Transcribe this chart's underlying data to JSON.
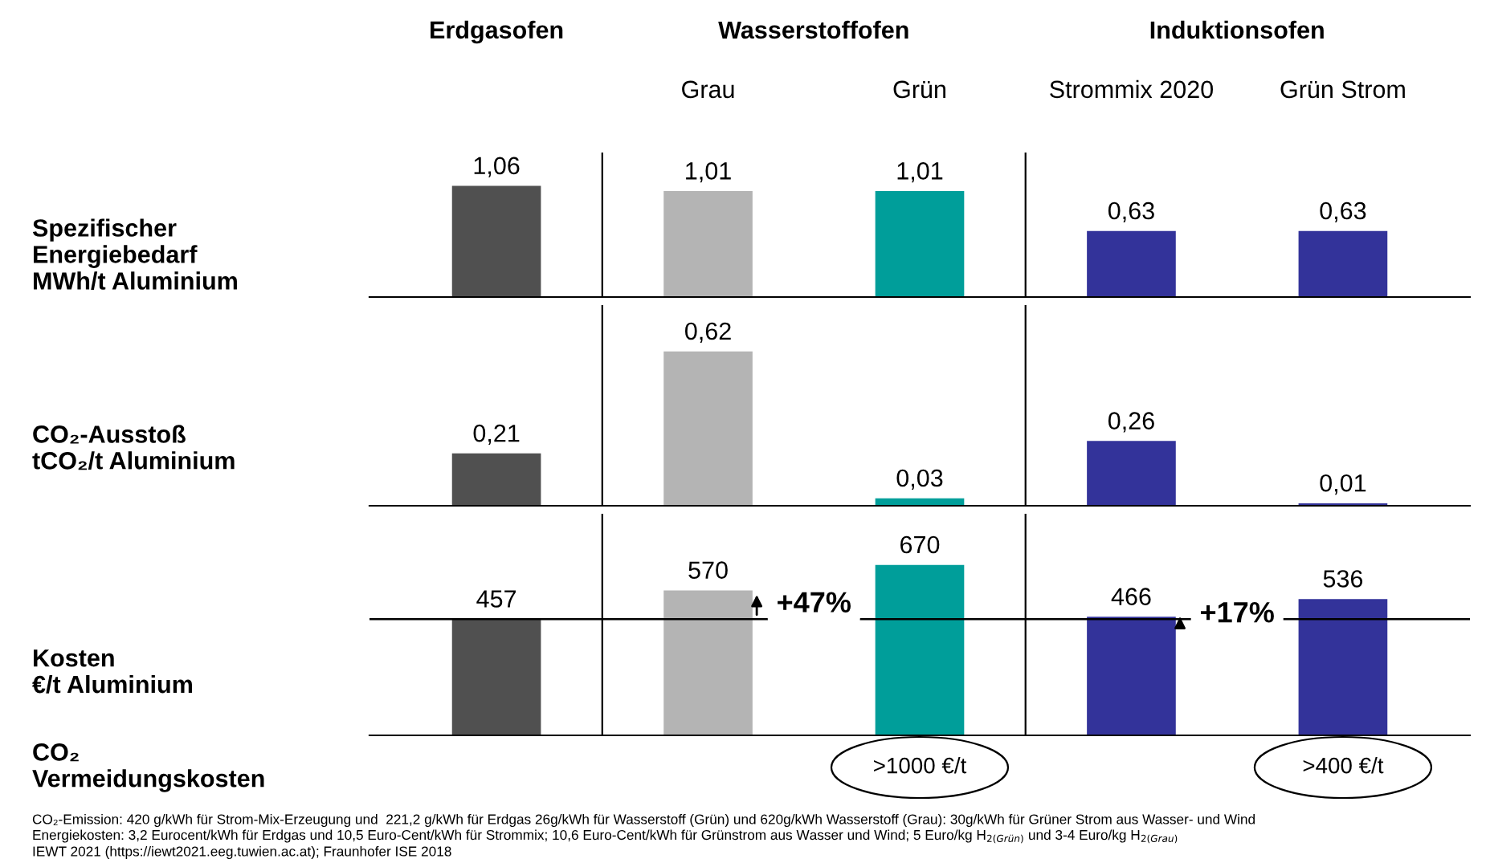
{
  "chart_data": [
    {
      "type": "bar",
      "categories": [
        null,
        "Grau",
        "Grün",
        "Strommix 2020",
        "Grün Strom"
      ],
      "ylabel": "Spezifischer\nEnergiebedarf\nMWh/t Aluminium",
      "values": [
        1.06,
        1.01,
        1.01,
        0.63,
        0.63
      ],
      "value_labels": [
        "1,06",
        "1,01",
        "1,01",
        "0,63",
        "0,63"
      ],
      "colors": [
        "#505050",
        "#b4b4b4",
        "#009e9a",
        "#33339a",
        "#33339a"
      ],
      "annotations": [
        "Erdgasofen",
        "Wasserstoffofen",
        "Induktionsofen"
      ]
    },
    {
      "type": "bar",
      "categories": [
        null,
        null,
        null,
        null,
        null
      ],
      "ylabel": "CO₂-Ausstoß\ntCO₂/t Aluminium",
      "values": [
        0.21,
        0.62,
        0.03,
        0.26,
        0.01
      ],
      "value_labels": [
        "0,21",
        "0,62",
        "0,03",
        "0,26",
        "0,01"
      ],
      "colors": [
        "#505050",
        "#b4b4b4",
        "#009e9a",
        "#33339a",
        "#33339a"
      ]
    },
    {
      "type": "bar",
      "categories": [
        null,
        null,
        null,
        null,
        null
      ],
      "ylabel": "Kosten\n€/t Aluminium",
      "values": [
        457,
        570,
        670,
        466,
        536
      ],
      "data_labels": true,
      "colors": [
        "#505050",
        "#b4b4b4",
        "#009e9a",
        "#33339a",
        "#33339a"
      ],
      "ref_lines": [
        {
          "axis": "y",
          "value": 457,
          "color": "#000000"
        }
      ],
      "annotations": [
        "+47%",
        "+17%",
        "CO₂\nVermeidungskosten",
        ">1000 €/t",
        ">400 €/t",
        "CO₂-Emission: 420 g/kWh für Strom-Mix-Erzeugung und  221,2 g/kWh für Erdgas 26g/kWh für Wasserstoff (Grün) und 620g/kWh Wasserstoff (Grau): 30g/kWh für Grüner Strom aus Wasser- und Wind",
        "Energiekosten: 3,2 Eurocent/kWh für Erdgas und 10,5 Euro-Cent/kWh für Strommix; 10,6 Euro-Cent/kWh für Grünstrom aus Wasser und Wind; 5 Euro/kg H$_{2(Grün)}$ und 3-4 Euro/kg H$_{2(Grau)}$",
        "IEWT 2021 (https://iewt2021.eeg.tuwien.ac.at); Fraunhofer ISE 2018"
      ]
    }
  ]
}
